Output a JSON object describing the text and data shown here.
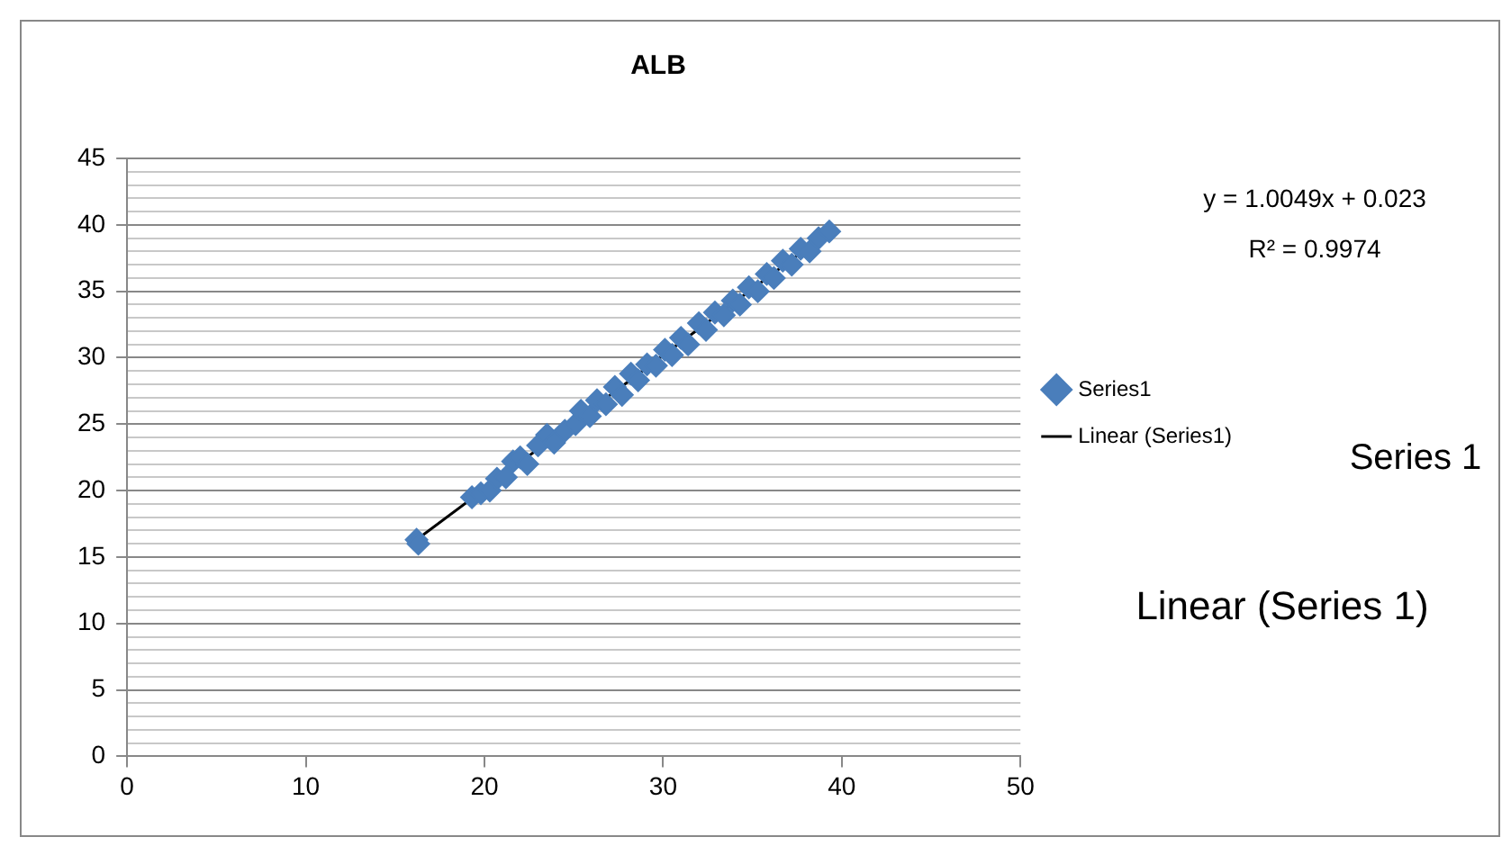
{
  "chart_data": {
    "type": "scatter",
    "title": "ALB",
    "series": [
      {
        "name": "Series1",
        "color": "#4a7ebb",
        "marker": "diamond",
        "x": [
          16.2,
          16.3,
          19.3,
          19.8,
          20.3,
          20.7,
          21.2,
          21.6,
          22.0,
          22.4,
          23.0,
          23.5,
          23.9,
          24.5,
          25.1,
          25.4,
          25.9,
          26.3,
          26.8,
          27.3,
          27.7,
          28.2,
          28.6,
          29.1,
          29.6,
          30.1,
          30.5,
          31.0,
          31.4,
          32.0,
          32.4,
          32.9,
          33.4,
          33.9,
          34.3,
          34.8,
          35.3,
          35.8,
          36.2,
          36.7,
          37.2,
          37.7,
          38.2,
          38.7,
          39.3
        ],
        "values": [
          16.3,
          16.0,
          19.5,
          19.8,
          20.0,
          20.9,
          21.0,
          22.2,
          22.5,
          22.0,
          23.4,
          24.2,
          23.6,
          24.5,
          25.0,
          26.0,
          25.6,
          26.8,
          26.5,
          27.8,
          27.2,
          28.8,
          28.3,
          29.5,
          29.4,
          30.6,
          30.2,
          31.5,
          31.0,
          32.6,
          32.1,
          33.4,
          33.2,
          34.3,
          34.0,
          35.3,
          35.0,
          36.3,
          36.0,
          37.3,
          37.0,
          38.2,
          38.0,
          39.0,
          39.5
        ]
      },
      {
        "name": "Linear (Series1)",
        "type": "line",
        "color": "#000000",
        "marker": "none",
        "x": [
          16.3,
          39.3
        ],
        "values": [
          16.4,
          39.5
        ]
      }
    ],
    "xlim": [
      0,
      50
    ],
    "xticks": [
      0,
      10,
      20,
      30,
      40,
      50
    ],
    "ylim": [
      0,
      45
    ],
    "yticks": [
      0,
      {
        "value": 1,
        "label": null
      },
      {
        "value": 2,
        "label": null
      },
      {
        "value": 3,
        "label": null
      },
      {
        "value": 4,
        "label": null
      },
      5,
      {
        "value": 6,
        "label": null
      },
      {
        "value": 7,
        "label": null
      },
      {
        "value": 8,
        "label": null
      },
      {
        "value": 9,
        "label": null
      },
      10,
      {
        "value": 11,
        "label": null
      },
      {
        "value": 12,
        "label": null
      },
      {
        "value": 13,
        "label": null
      },
      {
        "value": 14,
        "label": null
      },
      15,
      {
        "value": 16,
        "label": null
      },
      {
        "value": 17,
        "label": null
      },
      {
        "value": 18,
        "label": null
      },
      {
        "value": 19,
        "label": null
      },
      20,
      {
        "value": 21,
        "label": null
      },
      {
        "value": 22,
        "label": null
      },
      {
        "value": 23,
        "label": null
      },
      {
        "value": 24,
        "label": null
      },
      25,
      {
        "value": 26,
        "label": null
      },
      {
        "value": 27,
        "label": null
      },
      {
        "value": 28,
        "label": null
      },
      {
        "value": 29,
        "label": null
      },
      30,
      {
        "value": 31,
        "label": null
      },
      {
        "value": 32,
        "label": null
      },
      {
        "value": 33,
        "label": null
      },
      {
        "value": 34,
        "label": null
      },
      35,
      {
        "value": 36,
        "label": null
      },
      {
        "value": 37,
        "label": null
      },
      {
        "value": 38,
        "label": null
      },
      {
        "value": 39,
        "label": null
      },
      40,
      {
        "value": 41,
        "label": null
      },
      {
        "value": 42,
        "label": null
      },
      {
        "value": 43,
        "label": null
      },
      {
        "value": 44,
        "label": null
      },
      45
    ],
    "grid": "y",
    "legend": "right",
    "annotations": [
      "y = 1.0049x + 0.023",
      "R² = 0.9974",
      "Series 1",
      "Linear (Series 1)"
    ]
  }
}
